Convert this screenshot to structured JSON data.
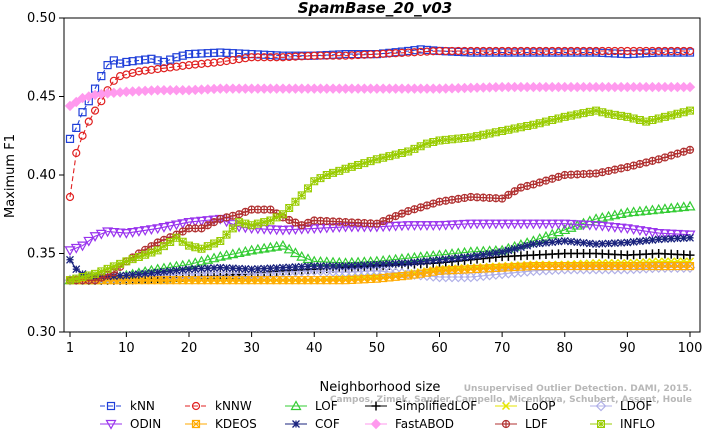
{
  "chart_data": {
    "type": "line",
    "title": "SpamBase_20_v03",
    "xlabel": "Neighborhood size",
    "ylabel": "Maximum F1",
    "xlim": [
      1,
      100
    ],
    "ylim": [
      0.3,
      0.5
    ],
    "xticks": [
      "1",
      "10",
      "20",
      "30",
      "40",
      "50",
      "60",
      "70",
      "80",
      "90",
      "100"
    ],
    "yticks": [
      "0.30",
      "0.35",
      "0.40",
      "0.45",
      "0.50"
    ],
    "grid": false,
    "legend_placement": "bottom",
    "credit": [
      "Campos, Zimek, Sander, Campello, Micenkova, Schubert, Assent, Houle",
      "Unsupervised Outlier Detection. DAMI, 2015."
    ],
    "series": [
      {
        "name": "kNN",
        "color": "#1f3fd9",
        "dash": "5,3",
        "marker": "square",
        "points": [
          [
            1,
            0.423
          ],
          [
            2,
            0.43
          ],
          [
            3,
            0.44
          ],
          [
            4,
            0.447
          ],
          [
            5,
            0.455
          ],
          [
            6,
            0.463
          ],
          [
            7,
            0.47
          ],
          [
            8,
            0.473
          ],
          [
            9,
            0.471
          ],
          [
            10,
            0.472
          ],
          [
            12,
            0.473
          ],
          [
            14,
            0.474
          ],
          [
            16,
            0.472
          ],
          [
            18,
            0.475
          ],
          [
            20,
            0.477
          ],
          [
            25,
            0.478
          ],
          [
            30,
            0.477
          ],
          [
            35,
            0.476
          ],
          [
            40,
            0.476
          ],
          [
            45,
            0.477
          ],
          [
            50,
            0.477
          ],
          [
            55,
            0.479
          ],
          [
            57,
            0.48
          ],
          [
            60,
            0.479
          ],
          [
            65,
            0.478
          ],
          [
            70,
            0.478
          ],
          [
            75,
            0.478
          ],
          [
            80,
            0.478
          ],
          [
            85,
            0.478
          ],
          [
            90,
            0.477
          ],
          [
            95,
            0.478
          ],
          [
            100,
            0.478
          ]
        ]
      },
      {
        "name": "kNNW",
        "color": "#e02020",
        "dash": "5,3",
        "marker": "circle",
        "points": [
          [
            1,
            0.386
          ],
          [
            2,
            0.414
          ],
          [
            3,
            0.425
          ],
          [
            4,
            0.434
          ],
          [
            5,
            0.441
          ],
          [
            6,
            0.447
          ],
          [
            7,
            0.454
          ],
          [
            8,
            0.46
          ],
          [
            9,
            0.463
          ],
          [
            10,
            0.464
          ],
          [
            12,
            0.466
          ],
          [
            14,
            0.467
          ],
          [
            16,
            0.468
          ],
          [
            18,
            0.469
          ],
          [
            20,
            0.47
          ],
          [
            25,
            0.472
          ],
          [
            30,
            0.475
          ],
          [
            35,
            0.475
          ],
          [
            40,
            0.476
          ],
          [
            45,
            0.476
          ],
          [
            50,
            0.477
          ],
          [
            55,
            0.478
          ],
          [
            60,
            0.479
          ],
          [
            65,
            0.479
          ],
          [
            70,
            0.479
          ],
          [
            75,
            0.479
          ],
          [
            80,
            0.479
          ],
          [
            85,
            0.479
          ],
          [
            90,
            0.479
          ],
          [
            95,
            0.479
          ],
          [
            100,
            0.479
          ]
        ]
      },
      {
        "name": "LOF",
        "color": "#33cc33",
        "dash": "",
        "marker": "triangle",
        "points": [
          [
            1,
            0.333
          ],
          [
            5,
            0.333
          ],
          [
            10,
            0.336
          ],
          [
            15,
            0.34
          ],
          [
            20,
            0.343
          ],
          [
            25,
            0.348
          ],
          [
            30,
            0.352
          ],
          [
            35,
            0.355
          ],
          [
            38,
            0.348
          ],
          [
            40,
            0.345
          ],
          [
            45,
            0.344
          ],
          [
            50,
            0.345
          ],
          [
            55,
            0.347
          ],
          [
            60,
            0.349
          ],
          [
            65,
            0.351
          ],
          [
            70,
            0.352
          ],
          [
            75,
            0.358
          ],
          [
            80,
            0.365
          ],
          [
            85,
            0.372
          ],
          [
            90,
            0.376
          ],
          [
            95,
            0.378
          ],
          [
            100,
            0.38
          ]
        ]
      },
      {
        "name": "SimplifiedLOF",
        "color": "#000000",
        "dash": "",
        "marker": "plus",
        "points": [
          [
            1,
            0.333
          ],
          [
            5,
            0.333
          ],
          [
            10,
            0.333
          ],
          [
            15,
            0.334
          ],
          [
            20,
            0.335
          ],
          [
            25,
            0.336
          ],
          [
            30,
            0.337
          ],
          [
            35,
            0.339
          ],
          [
            40,
            0.34
          ],
          [
            45,
            0.341
          ],
          [
            50,
            0.342
          ],
          [
            55,
            0.343
          ],
          [
            60,
            0.344
          ],
          [
            65,
            0.346
          ],
          [
            70,
            0.348
          ],
          [
            75,
            0.349
          ],
          [
            80,
            0.35
          ],
          [
            85,
            0.35
          ],
          [
            90,
            0.349
          ],
          [
            95,
            0.35
          ],
          [
            100,
            0.349
          ]
        ]
      },
      {
        "name": "LoOP",
        "color": "#e6e600",
        "dash": "",
        "marker": "x",
        "points": [
          [
            1,
            0.333
          ],
          [
            5,
            0.333
          ],
          [
            10,
            0.333
          ],
          [
            15,
            0.333
          ],
          [
            20,
            0.333
          ],
          [
            25,
            0.333
          ],
          [
            30,
            0.333
          ],
          [
            35,
            0.333
          ],
          [
            40,
            0.333
          ],
          [
            45,
            0.334
          ],
          [
            50,
            0.335
          ],
          [
            55,
            0.337
          ],
          [
            60,
            0.34
          ],
          [
            65,
            0.341
          ],
          [
            70,
            0.342
          ],
          [
            75,
            0.343
          ],
          [
            80,
            0.343
          ],
          [
            85,
            0.344
          ],
          [
            90,
            0.344
          ],
          [
            95,
            0.345
          ],
          [
            100,
            0.345
          ]
        ]
      },
      {
        "name": "LDOF",
        "color": "#b0b0e8",
        "dash": "",
        "marker": "diamond",
        "points": [
          [
            1,
            0.333
          ],
          [
            5,
            0.334
          ],
          [
            10,
            0.335
          ],
          [
            15,
            0.336
          ],
          [
            20,
            0.337
          ],
          [
            25,
            0.338
          ],
          [
            30,
            0.337
          ],
          [
            35,
            0.338
          ],
          [
            40,
            0.339
          ],
          [
            45,
            0.338
          ],
          [
            50,
            0.339
          ],
          [
            55,
            0.337
          ],
          [
            60,
            0.335
          ],
          [
            65,
            0.335
          ],
          [
            70,
            0.337
          ],
          [
            75,
            0.339
          ],
          [
            80,
            0.34
          ],
          [
            85,
            0.34
          ],
          [
            90,
            0.34
          ],
          [
            95,
            0.341
          ],
          [
            100,
            0.341
          ]
        ]
      },
      {
        "name": "ODIN",
        "color": "#9933ee",
        "dash": "",
        "marker": "triangle-down",
        "points": [
          [
            1,
            0.352
          ],
          [
            3,
            0.355
          ],
          [
            5,
            0.361
          ],
          [
            7,
            0.364
          ],
          [
            10,
            0.363
          ],
          [
            15,
            0.366
          ],
          [
            20,
            0.37
          ],
          [
            25,
            0.372
          ],
          [
            28,
            0.367
          ],
          [
            30,
            0.366
          ],
          [
            35,
            0.365
          ],
          [
            40,
            0.366
          ],
          [
            45,
            0.367
          ],
          [
            50,
            0.367
          ],
          [
            55,
            0.368
          ],
          [
            60,
            0.368
          ],
          [
            65,
            0.369
          ],
          [
            70,
            0.369
          ],
          [
            75,
            0.369
          ],
          [
            80,
            0.369
          ],
          [
            85,
            0.368
          ],
          [
            90,
            0.366
          ],
          [
            95,
            0.363
          ],
          [
            100,
            0.362
          ]
        ]
      },
      {
        "name": "KDEOS",
        "color": "#ffaa00",
        "dash": "",
        "marker": "square-cross",
        "points": [
          [
            1,
            0.333
          ],
          [
            5,
            0.333
          ],
          [
            10,
            0.333
          ],
          [
            15,
            0.333
          ],
          [
            20,
            0.333
          ],
          [
            25,
            0.333
          ],
          [
            30,
            0.333
          ],
          [
            35,
            0.333
          ],
          [
            40,
            0.333
          ],
          [
            45,
            0.333
          ],
          [
            50,
            0.334
          ],
          [
            55,
            0.336
          ],
          [
            60,
            0.339
          ],
          [
            65,
            0.34
          ],
          [
            70,
            0.341
          ],
          [
            75,
            0.342
          ],
          [
            80,
            0.342
          ],
          [
            85,
            0.342
          ],
          [
            90,
            0.342
          ],
          [
            95,
            0.342
          ],
          [
            100,
            0.342
          ]
        ]
      },
      {
        "name": "COF",
        "color": "#1a237e",
        "dash": "",
        "marker": "star",
        "points": [
          [
            1,
            0.346
          ],
          [
            2,
            0.34
          ],
          [
            3,
            0.337
          ],
          [
            5,
            0.335
          ],
          [
            10,
            0.336
          ],
          [
            15,
            0.338
          ],
          [
            20,
            0.34
          ],
          [
            25,
            0.341
          ],
          [
            30,
            0.34
          ],
          [
            35,
            0.341
          ],
          [
            40,
            0.342
          ],
          [
            45,
            0.342
          ],
          [
            50,
            0.343
          ],
          [
            55,
            0.344
          ],
          [
            60,
            0.346
          ],
          [
            65,
            0.348
          ],
          [
            70,
            0.351
          ],
          [
            75,
            0.356
          ],
          [
            80,
            0.358
          ],
          [
            85,
            0.356
          ],
          [
            90,
            0.357
          ],
          [
            95,
            0.359
          ],
          [
            100,
            0.36
          ]
        ]
      },
      {
        "name": "FastABOD",
        "color": "#ff99ee",
        "dash": "",
        "marker": "diamond-filled",
        "points": [
          [
            1,
            0.444
          ],
          [
            3,
            0.449
          ],
          [
            5,
            0.451
          ],
          [
            7,
            0.452
          ],
          [
            10,
            0.453
          ],
          [
            15,
            0.454
          ],
          [
            20,
            0.454
          ],
          [
            25,
            0.455
          ],
          [
            30,
            0.455
          ],
          [
            40,
            0.455
          ],
          [
            50,
            0.455
          ],
          [
            60,
            0.455
          ],
          [
            70,
            0.456
          ],
          [
            80,
            0.456
          ],
          [
            90,
            0.456
          ],
          [
            100,
            0.456
          ]
        ]
      },
      {
        "name": "LDF",
        "color": "#b03030",
        "dash": "",
        "marker": "circle-plus",
        "points": [
          [
            1,
            0.333
          ],
          [
            5,
            0.333
          ],
          [
            8,
            0.338
          ],
          [
            10,
            0.345
          ],
          [
            12,
            0.35
          ],
          [
            15,
            0.357
          ],
          [
            18,
            0.362
          ],
          [
            20,
            0.366
          ],
          [
            22,
            0.366
          ],
          [
            25,
            0.372
          ],
          [
            28,
            0.375
          ],
          [
            30,
            0.378
          ],
          [
            33,
            0.378
          ],
          [
            35,
            0.373
          ],
          [
            38,
            0.368
          ],
          [
            40,
            0.371
          ],
          [
            45,
            0.37
          ],
          [
            50,
            0.369
          ],
          [
            55,
            0.377
          ],
          [
            60,
            0.383
          ],
          [
            65,
            0.386
          ],
          [
            70,
            0.385
          ],
          [
            73,
            0.392
          ],
          [
            75,
            0.394
          ],
          [
            80,
            0.4
          ],
          [
            85,
            0.401
          ],
          [
            90,
            0.405
          ],
          [
            95,
            0.41
          ],
          [
            100,
            0.416
          ]
        ]
      },
      {
        "name": "INFLO",
        "color": "#99cc00",
        "dash": "",
        "marker": "star-box",
        "points": [
          [
            1,
            0.333
          ],
          [
            5,
            0.337
          ],
          [
            10,
            0.345
          ],
          [
            15,
            0.352
          ],
          [
            18,
            0.36
          ],
          [
            20,
            0.355
          ],
          [
            22,
            0.353
          ],
          [
            25,
            0.358
          ],
          [
            28,
            0.37
          ],
          [
            30,
            0.368
          ],
          [
            33,
            0.371
          ],
          [
            35,
            0.375
          ],
          [
            38,
            0.387
          ],
          [
            40,
            0.396
          ],
          [
            42,
            0.4
          ],
          [
            45,
            0.404
          ],
          [
            50,
            0.41
          ],
          [
            55,
            0.415
          ],
          [
            58,
            0.42
          ],
          [
            60,
            0.422
          ],
          [
            65,
            0.424
          ],
          [
            70,
            0.428
          ],
          [
            75,
            0.432
          ],
          [
            80,
            0.437
          ],
          [
            85,
            0.441
          ],
          [
            87,
            0.439
          ],
          [
            90,
            0.437
          ],
          [
            93,
            0.434
          ],
          [
            95,
            0.436
          ],
          [
            100,
            0.441
          ]
        ]
      }
    ]
  }
}
